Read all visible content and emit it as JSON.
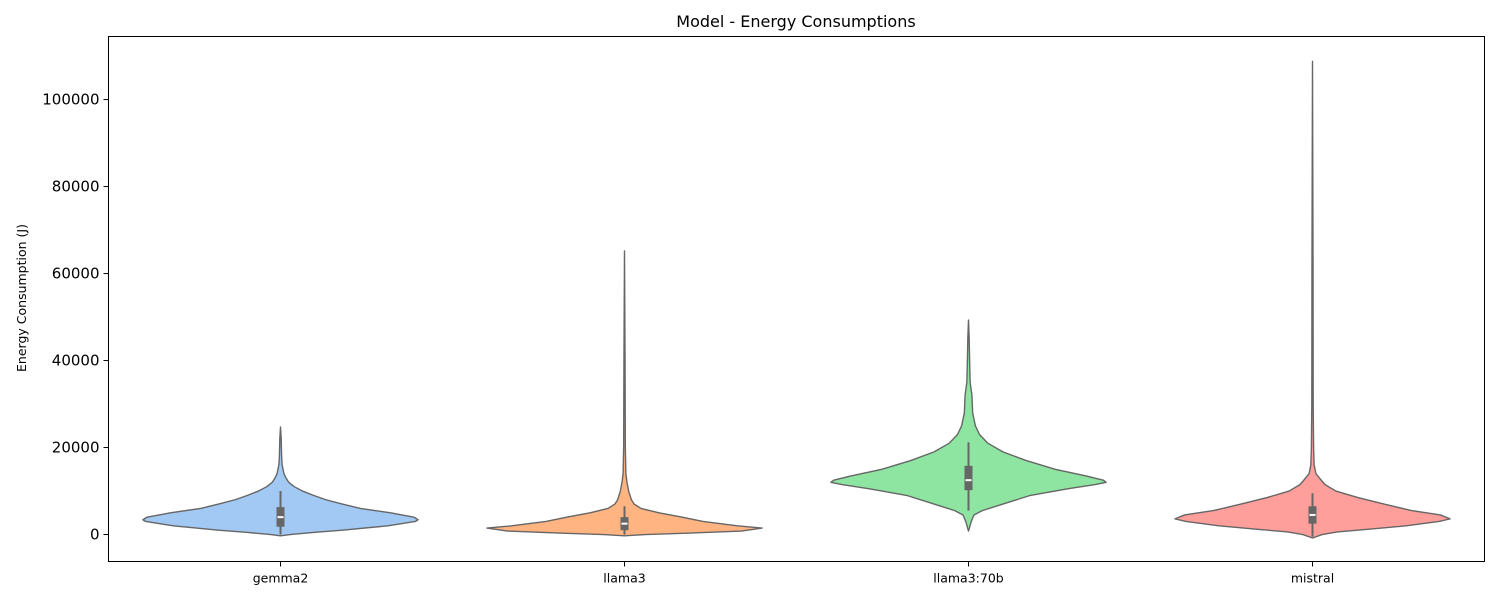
{
  "chart_data": {
    "type": "violin",
    "title": "Model - Energy Consumptions",
    "xlabel": "",
    "ylabel": "Energy Consumption (J)",
    "ylim": [
      -6200,
      114500
    ],
    "yticks": [
      0,
      20000,
      40000,
      60000,
      80000,
      100000
    ],
    "grid": false,
    "categories": [
      "gemma2",
      "llama3",
      "llama3:70b",
      "mistral"
    ],
    "colors": [
      "#a1c9f4",
      "#ffb482",
      "#8de5a1",
      "#ff9f9b"
    ],
    "edge_color": "#666666",
    "series": [
      {
        "category": "gemma2",
        "min": -300,
        "max": 24700,
        "q1": 1800,
        "median": 4000,
        "q3": 6300,
        "whisker_low": 0,
        "whisker_high": 10000,
        "density_profile": [
          [
            -300,
            0.0
          ],
          [
            0,
            0.07
          ],
          [
            500,
            0.25
          ],
          [
            1000,
            0.45
          ],
          [
            2000,
            0.78
          ],
          [
            3000,
            0.98
          ],
          [
            3400,
            1.0
          ],
          [
            4000,
            0.97
          ],
          [
            5000,
            0.8
          ],
          [
            6000,
            0.58
          ],
          [
            7000,
            0.45
          ],
          [
            8000,
            0.33
          ],
          [
            9000,
            0.24
          ],
          [
            10000,
            0.16
          ],
          [
            11000,
            0.1
          ],
          [
            12000,
            0.06
          ],
          [
            13000,
            0.04
          ],
          [
            14000,
            0.025
          ],
          [
            16000,
            0.012
          ],
          [
            18000,
            0.008
          ],
          [
            22000,
            0.005
          ],
          [
            24700,
            0.0
          ]
        ]
      },
      {
        "category": "llama3",
        "min": -300,
        "max": 65200,
        "q1": 1000,
        "median": 2500,
        "q3": 4000,
        "whisker_low": 0,
        "whisker_high": 6500,
        "density_profile": [
          [
            -300,
            0.0
          ],
          [
            0,
            0.15
          ],
          [
            300,
            0.45
          ],
          [
            800,
            0.85
          ],
          [
            1500,
            1.0
          ],
          [
            2000,
            0.82
          ],
          [
            3000,
            0.57
          ],
          [
            4000,
            0.42
          ],
          [
            5000,
            0.25
          ],
          [
            6000,
            0.12
          ],
          [
            7000,
            0.07
          ],
          [
            8000,
            0.05
          ],
          [
            10000,
            0.03
          ],
          [
            12000,
            0.018
          ],
          [
            14000,
            0.01
          ],
          [
            20000,
            0.006
          ],
          [
            40000,
            0.004
          ],
          [
            65200,
            0.0
          ]
        ]
      },
      {
        "category": "llama3:70b",
        "min": 800,
        "max": 49300,
        "q1": 10200,
        "median": 12500,
        "q3": 15800,
        "whisker_low": 5500,
        "whisker_high": 21200,
        "density_profile": [
          [
            800,
            0.0
          ],
          [
            3000,
            0.02
          ],
          [
            4500,
            0.04
          ],
          [
            5500,
            0.1
          ],
          [
            7000,
            0.25
          ],
          [
            9000,
            0.45
          ],
          [
            10500,
            0.72
          ],
          [
            11500,
            0.92
          ],
          [
            12000,
            1.0
          ],
          [
            12500,
            0.98
          ],
          [
            13500,
            0.85
          ],
          [
            15000,
            0.63
          ],
          [
            17000,
            0.42
          ],
          [
            19000,
            0.25
          ],
          [
            21000,
            0.14
          ],
          [
            23000,
            0.08
          ],
          [
            25000,
            0.05
          ],
          [
            28000,
            0.03
          ],
          [
            32000,
            0.025
          ],
          [
            35000,
            0.012
          ],
          [
            40000,
            0.008
          ],
          [
            45000,
            0.005
          ],
          [
            49300,
            0.0
          ]
        ]
      },
      {
        "category": "mistral",
        "min": -800,
        "max": 108800,
        "q1": 2500,
        "median": 4500,
        "q3": 6500,
        "whisker_low": -500,
        "whisker_high": 9500,
        "density_profile": [
          [
            -800,
            0.0
          ],
          [
            0,
            0.07
          ],
          [
            600,
            0.18
          ],
          [
            1200,
            0.4
          ],
          [
            2000,
            0.68
          ],
          [
            3000,
            0.92
          ],
          [
            3600,
            1.0
          ],
          [
            4500,
            0.93
          ],
          [
            5500,
            0.72
          ],
          [
            7000,
            0.52
          ],
          [
            8500,
            0.33
          ],
          [
            10000,
            0.17
          ],
          [
            11500,
            0.09
          ],
          [
            13000,
            0.05
          ],
          [
            14000,
            0.025
          ],
          [
            16000,
            0.012
          ],
          [
            20000,
            0.008
          ],
          [
            30000,
            0.005
          ],
          [
            60000,
            0.004
          ],
          [
            108800,
            0.0
          ]
        ]
      }
    ]
  }
}
